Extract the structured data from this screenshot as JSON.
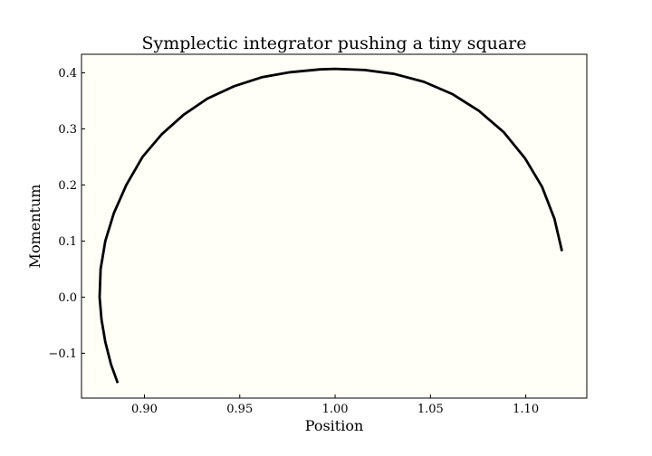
{
  "chart_data": {
    "type": "line",
    "title": "Symplectic integrator pushing a tiny square",
    "xlabel": "Position",
    "ylabel": "Momentum",
    "xlim": [
      0.867,
      1.132
    ],
    "ylim": [
      -0.18,
      0.433
    ],
    "x_ticks": [
      0.9,
      0.95,
      1.0,
      1.05,
      1.1
    ],
    "x_tick_labels": [
      "0.90",
      "0.95",
      "1.00",
      "1.05",
      "1.10"
    ],
    "y_ticks": [
      -0.1,
      0.0,
      0.1,
      0.2,
      0.3,
      0.4
    ],
    "y_tick_labels": [
      "−0.1",
      "0.0",
      "0.1",
      "0.2",
      "0.3",
      "0.4"
    ],
    "grid": false,
    "plot_background": "#fffff7",
    "line_color": "#000000",
    "series": [
      {
        "x": [
          0.886,
          0.8825,
          0.8795,
          0.8775,
          0.8765,
          0.877,
          0.8795,
          0.884,
          0.8905,
          0.899,
          0.909,
          0.9205,
          0.933,
          0.947,
          0.9615,
          0.9765,
          0.992,
          1.0,
          1.0155,
          1.031,
          1.0465,
          1.0615,
          1.0755,
          1.0885,
          1.0995,
          1.1085,
          1.115,
          1.119
        ],
        "y": [
          -0.153,
          -0.12,
          -0.08,
          -0.04,
          0.0,
          0.05,
          0.1,
          0.15,
          0.2,
          0.25,
          0.29,
          0.325,
          0.354,
          0.376,
          0.392,
          0.401,
          0.406,
          0.407,
          0.405,
          0.398,
          0.384,
          0.362,
          0.332,
          0.294,
          0.248,
          0.197,
          0.14,
          0.082
        ]
      }
    ]
  }
}
